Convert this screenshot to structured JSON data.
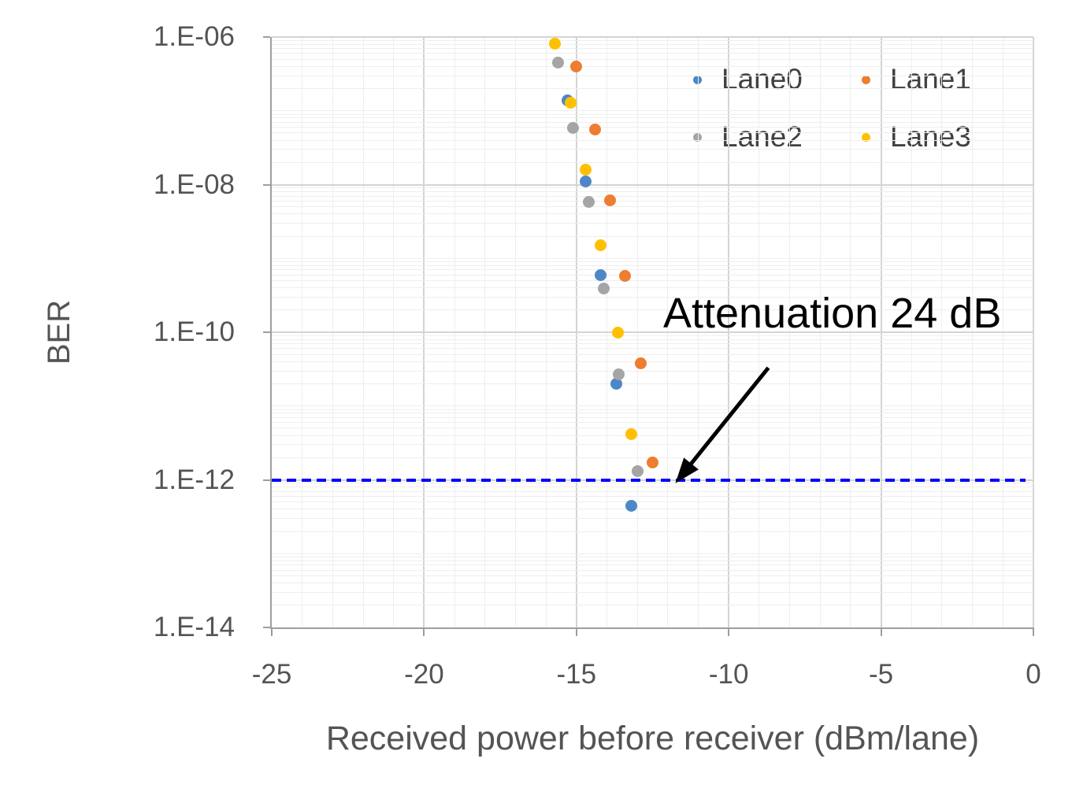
{
  "chart_data": {
    "type": "scatter",
    "title": "",
    "xlabel": "Received power before receiver (dBm/lane)",
    "ylabel": "BER",
    "x_axis": {
      "min": -25,
      "max": 0,
      "minor_step": 1,
      "tick_values": [
        -25,
        -20,
        -15,
        -10,
        -5,
        0
      ],
      "tick_labels": [
        "-25",
        "-20",
        "-15",
        "-10",
        "-5",
        "0"
      ]
    },
    "y_axis": {
      "scale": "log",
      "max_exp": -6,
      "min_exp": -14,
      "tick_exps": [
        -6,
        -8,
        -10,
        -12,
        -14
      ],
      "tick_labels": [
        "1.E-06",
        "1.E-08",
        "1.E-10",
        "1.E-12",
        "1.E-14"
      ]
    },
    "grid": {
      "minor_color": "#eeeeee",
      "major_color": "#d4d4d4",
      "axis_color": "#9e9e9e"
    },
    "legend_position": "top-right-inside",
    "series": [
      {
        "name": "Lane0",
        "color": "#4e87c8",
        "points": [
          [
            -15.3,
            1.4e-07
          ],
          [
            -14.7,
            1.1e-08
          ],
          [
            -14.2,
            6e-10
          ],
          [
            -13.7,
            2e-11
          ],
          [
            -13.2,
            4.4e-13
          ]
        ]
      },
      {
        "name": "Lane1",
        "color": "#ed7d31",
        "points": [
          [
            -15.0,
            4e-07
          ],
          [
            -14.4,
            5.6e-08
          ],
          [
            -13.9,
            6.1e-09
          ],
          [
            -13.4,
            5.8e-10
          ],
          [
            -12.9,
            3.8e-11
          ],
          [
            -12.5,
            1.7e-12
          ]
        ]
      },
      {
        "name": "Lane2",
        "color": "#a5a5a5",
        "points": [
          [
            -15.6,
            4.5e-07
          ],
          [
            -15.1,
            5.8e-08
          ],
          [
            -14.6,
            5.8e-09
          ],
          [
            -14.1,
            3.9e-10
          ],
          [
            -13.6,
            2.7e-11
          ],
          [
            -13.0,
            1.3e-12
          ]
        ]
      },
      {
        "name": "Lane3",
        "color": "#ffc000",
        "points": [
          [
            -15.7,
            8.2e-07
          ],
          [
            -15.2,
            1.3e-07
          ],
          [
            -14.7,
            1.6e-08
          ],
          [
            -14.2,
            1.5e-09
          ],
          [
            -13.65,
            1e-10
          ],
          [
            -13.2,
            4.2e-12
          ]
        ]
      }
    ],
    "reference_line": {
      "ber": 1e-12,
      "color": "#0000ff",
      "style": "dashed"
    },
    "annotation": {
      "text": "Attenuation 24 dB",
      "arrow_color": "#000000",
      "arrow_from": [
        -8.7,
        3.3e-11
      ],
      "arrow_to": [
        -11.75,
        9e-13
      ]
    }
  }
}
